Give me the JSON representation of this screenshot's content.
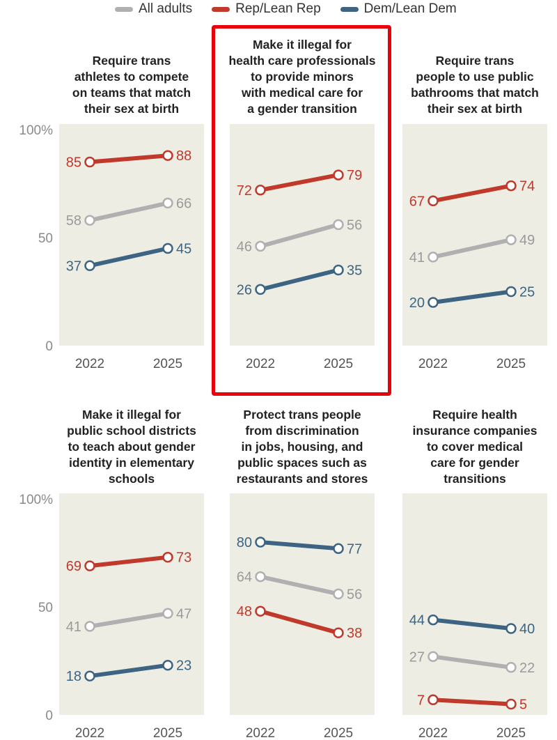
{
  "legend": {
    "items": [
      {
        "label": "All adults",
        "color": "#b0b0b0"
      },
      {
        "label": "Rep/Lean Rep",
        "color": "#c0392b"
      },
      {
        "label": "Dem/Lean Dem",
        "color": "#3d6482"
      }
    ]
  },
  "colors": {
    "all_adults": "#b0b0b0",
    "all_adults_text": "#9a9a9a",
    "rep": "#c0392b",
    "dem": "#3d6482",
    "panel_bg": "#eeede3",
    "axis_text": "#8a8a8a",
    "highlight": "#e8000b"
  },
  "chart_data": [
    {
      "type": "line",
      "title": "Require trans athletes to compete on teams that match their sex at birth",
      "title_lines": [
        "Require trans",
        "athletes to compete",
        "on teams that match",
        "their sex at birth"
      ],
      "x": [
        "2022",
        "2025"
      ],
      "ylim": [
        0,
        100
      ],
      "yticks": [
        "0",
        "50",
        "100%"
      ],
      "series": [
        {
          "name": "All adults",
          "values": [
            58,
            66
          ]
        },
        {
          "name": "Rep/Lean Rep",
          "values": [
            85,
            88
          ]
        },
        {
          "name": "Dem/Lean Dem",
          "values": [
            37,
            45
          ]
        }
      ]
    },
    {
      "type": "line",
      "title": "Make it illegal for health care professionals to provide minors with medical care for a gender transition",
      "title_lines": [
        "Make it illegal for",
        "health care professionals",
        "to provide minors",
        "with medical care for",
        "a gender transition"
      ],
      "highlighted": true,
      "x": [
        "2022",
        "2025"
      ],
      "ylim": [
        0,
        100
      ],
      "series": [
        {
          "name": "All adults",
          "values": [
            46,
            56
          ]
        },
        {
          "name": "Rep/Lean Rep",
          "values": [
            72,
            79
          ]
        },
        {
          "name": "Dem/Lean Dem",
          "values": [
            26,
            35
          ]
        }
      ]
    },
    {
      "type": "line",
      "title": "Require trans people to use public bathrooms that match their sex at birth",
      "title_lines": [
        "Require trans",
        "people to use public",
        "bathrooms that match",
        "their sex at birth"
      ],
      "x": [
        "2022",
        "2025"
      ],
      "ylim": [
        0,
        100
      ],
      "series": [
        {
          "name": "All adults",
          "values": [
            41,
            49
          ]
        },
        {
          "name": "Rep/Lean Rep",
          "values": [
            67,
            74
          ]
        },
        {
          "name": "Dem/Lean Dem",
          "values": [
            20,
            25
          ]
        }
      ]
    },
    {
      "type": "line",
      "title": "Make it illegal for public school districts to teach about gender identity in elementary schools",
      "title_lines": [
        "Make it illegal for",
        "public school districts",
        "to teach about gender",
        "identity in elementary",
        "schools"
      ],
      "x": [
        "2022",
        "2025"
      ],
      "ylim": [
        0,
        100
      ],
      "yticks": [
        "0",
        "50",
        "100%"
      ],
      "series": [
        {
          "name": "All adults",
          "values": [
            41,
            47
          ]
        },
        {
          "name": "Rep/Lean Rep",
          "values": [
            69,
            73
          ]
        },
        {
          "name": "Dem/Lean Dem",
          "values": [
            18,
            23
          ]
        }
      ]
    },
    {
      "type": "line",
      "title": "Protect trans people from discrimination in jobs, housing, and public spaces such as restaurants and stores",
      "title_lines": [
        "Protect trans people",
        "from discrimination",
        "in jobs, housing, and",
        "public spaces such as",
        "restaurants and stores"
      ],
      "x": [
        "2022",
        "2025"
      ],
      "ylim": [
        0,
        100
      ],
      "series": [
        {
          "name": "All adults",
          "values": [
            64,
            56
          ]
        },
        {
          "name": "Rep/Lean Rep",
          "values": [
            48,
            38
          ]
        },
        {
          "name": "Dem/Lean Dem",
          "values": [
            80,
            77
          ]
        }
      ]
    },
    {
      "type": "line",
      "title": "Require health insurance companies to cover medical care for gender transitions",
      "title_lines": [
        "Require health",
        "insurance companies",
        "to cover medical",
        "care for gender",
        "transitions"
      ],
      "x": [
        "2022",
        "2025"
      ],
      "ylim": [
        0,
        100
      ],
      "series": [
        {
          "name": "All adults",
          "values": [
            27,
            22
          ]
        },
        {
          "name": "Rep/Lean Rep",
          "values": [
            7,
            5
          ]
        },
        {
          "name": "Dem/Lean Dem",
          "values": [
            44,
            40
          ]
        }
      ]
    }
  ]
}
